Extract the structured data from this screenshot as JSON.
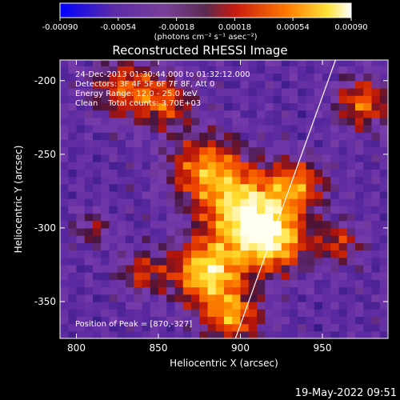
{
  "chart_data": {
    "type": "heatmap",
    "title": "Reconstructed RHESSI Image",
    "colorbar": {
      "min": -0.0009,
      "max": 0.0009,
      "tick_labels": [
        "-0.00090",
        "-0.00054",
        "-0.00018",
        "0.00018",
        "0.00054",
        "0.00090"
      ],
      "unit_label": "(photons cm⁻² s⁻¹ asec⁻²)",
      "colormap": "rainbow-to-heat (blue, purple, red, orange, yellow, white)"
    },
    "xlabel": "Heliocentric X (arcsec)",
    "ylabel": "Heliocentric Y (arcsec)",
    "xlim": [
      790,
      990
    ],
    "ylim": [
      -375,
      -186
    ],
    "x_tick_labels": [
      "800",
      "850",
      "900",
      "950"
    ],
    "y_tick_labels": [
      "-200",
      "-250",
      "-300",
      "-350"
    ],
    "annotations": [
      "24-Dec-2013 01:30:44.000 to 01:32:12.000",
      "Detectors: 3F 4F 5F 6F 7F 8F, Att 0",
      "Energy Range: 12.0 - 25.0 keV",
      "Clean    Total counts: 3.70E+03",
      "Position of Peak = [870,-327]"
    ],
    "limb_line": {
      "x": [
        897,
        958
      ],
      "y": [
        -375,
        -186
      ]
    },
    "peak": {
      "x": 870,
      "y": -327
    },
    "bright_regions": [
      {
        "x": 905,
        "y": -290,
        "sigma": 18,
        "amplitude": 1.0
      },
      {
        "x": 880,
        "y": -330,
        "sigma": 15,
        "amplitude": 0.95
      },
      {
        "x": 920,
        "y": -310,
        "sigma": 14,
        "amplitude": 0.75
      },
      {
        "x": 880,
        "y": -260,
        "sigma": 16,
        "amplitude": 0.7
      },
      {
        "x": 895,
        "y": -360,
        "sigma": 12,
        "amplitude": 0.7
      },
      {
        "x": 830,
        "y": -205,
        "sigma": 14,
        "amplitude": 0.55
      },
      {
        "x": 855,
        "y": -215,
        "sigma": 12,
        "amplitude": 0.5
      },
      {
        "x": 975,
        "y": -215,
        "sigma": 12,
        "amplitude": 0.6
      },
      {
        "x": 935,
        "y": -270,
        "sigma": 12,
        "amplitude": 0.6
      },
      {
        "x": 960,
        "y": -310,
        "sigma": 10,
        "amplitude": 0.45
      },
      {
        "x": 840,
        "y": -330,
        "sigma": 10,
        "amplitude": 0.45
      },
      {
        "x": 810,
        "y": -300,
        "sigma": 8,
        "amplitude": 0.35
      }
    ],
    "timestamp": "19-May-2022 09:51"
  }
}
